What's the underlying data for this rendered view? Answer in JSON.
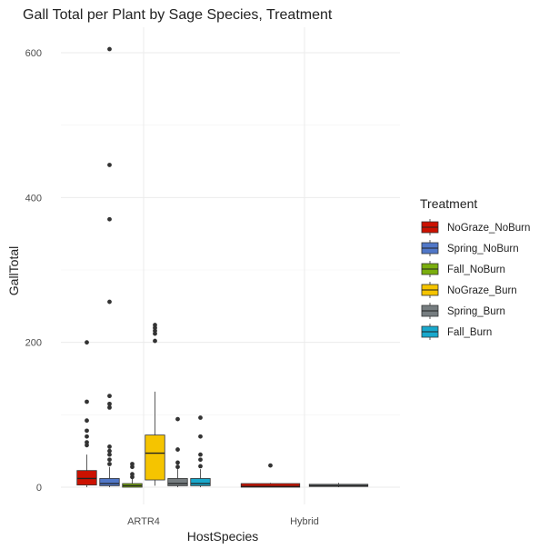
{
  "chart_data": {
    "type": "boxplot",
    "title": "Gall Total per Plant by Sage Species, Treatment",
    "xlabel": "HostSpecies",
    "ylabel": "GallTotal",
    "categories": [
      "ARTR4",
      "Hybrid"
    ],
    "yticks": [
      0,
      200,
      400,
      600
    ],
    "ylim": [
      -15,
      630
    ],
    "grid": true,
    "legend": {
      "title": "Treatment",
      "placement": "right"
    },
    "series": [
      {
        "name": "NoGraze_NoBurn",
        "color": "#CC1100",
        "boxes": [
          {
            "category": "ARTR4",
            "min": 0,
            "q1": 3,
            "median": 12,
            "q3": 23,
            "max": 45,
            "outliers": [
              58,
              62,
              70,
              78,
              92,
              118,
              200
            ]
          },
          {
            "category": "Hybrid",
            "min": 0,
            "q1": 0,
            "median": 1,
            "q3": 5,
            "max": 6,
            "outliers": [
              30
            ]
          }
        ]
      },
      {
        "name": "Spring_NoBurn",
        "color": "#5077C8",
        "boxes": [
          {
            "category": "ARTR4",
            "min": 0,
            "q1": 2,
            "median": 5,
            "q3": 12,
            "max": 28,
            "outliers": [
              32,
              38,
              45,
              50,
              56,
              110,
              115,
              126,
              256,
              370,
              445,
              605
            ]
          }
        ]
      },
      {
        "name": "Fall_NoBurn",
        "color": "#7AAE0E",
        "boxes": [
          {
            "category": "ARTR4",
            "min": 0,
            "q1": 0,
            "median": 2,
            "q3": 5,
            "max": 12,
            "outliers": [
              14,
              18,
              28,
              32
            ]
          }
        ]
      },
      {
        "name": "NoGraze_Burn",
        "color": "#F5C400",
        "boxes": [
          {
            "category": "ARTR4",
            "min": 2,
            "q1": 10,
            "median": 47,
            "q3": 72,
            "max": 132,
            "outliers": [
              202,
              212,
              216,
              220,
              224
            ]
          }
        ]
      },
      {
        "name": "Spring_Burn",
        "color": "#767D80",
        "boxes": [
          {
            "category": "ARTR4",
            "min": 0,
            "q1": 2,
            "median": 5,
            "q3": 12,
            "max": 25,
            "outliers": [
              28,
              34,
              52,
              94
            ]
          },
          {
            "category": "Hybrid",
            "min": 0,
            "q1": 1,
            "median": 2,
            "q3": 4,
            "max": 6,
            "outliers": []
          }
        ]
      },
      {
        "name": "Fall_Burn",
        "color": "#18A8CC",
        "boxes": [
          {
            "category": "ARTR4",
            "min": 0,
            "q1": 2,
            "median": 5,
            "q3": 12,
            "max": 25,
            "outliers": [
              29,
              38,
              45,
              70,
              96
            ]
          }
        ]
      }
    ]
  }
}
